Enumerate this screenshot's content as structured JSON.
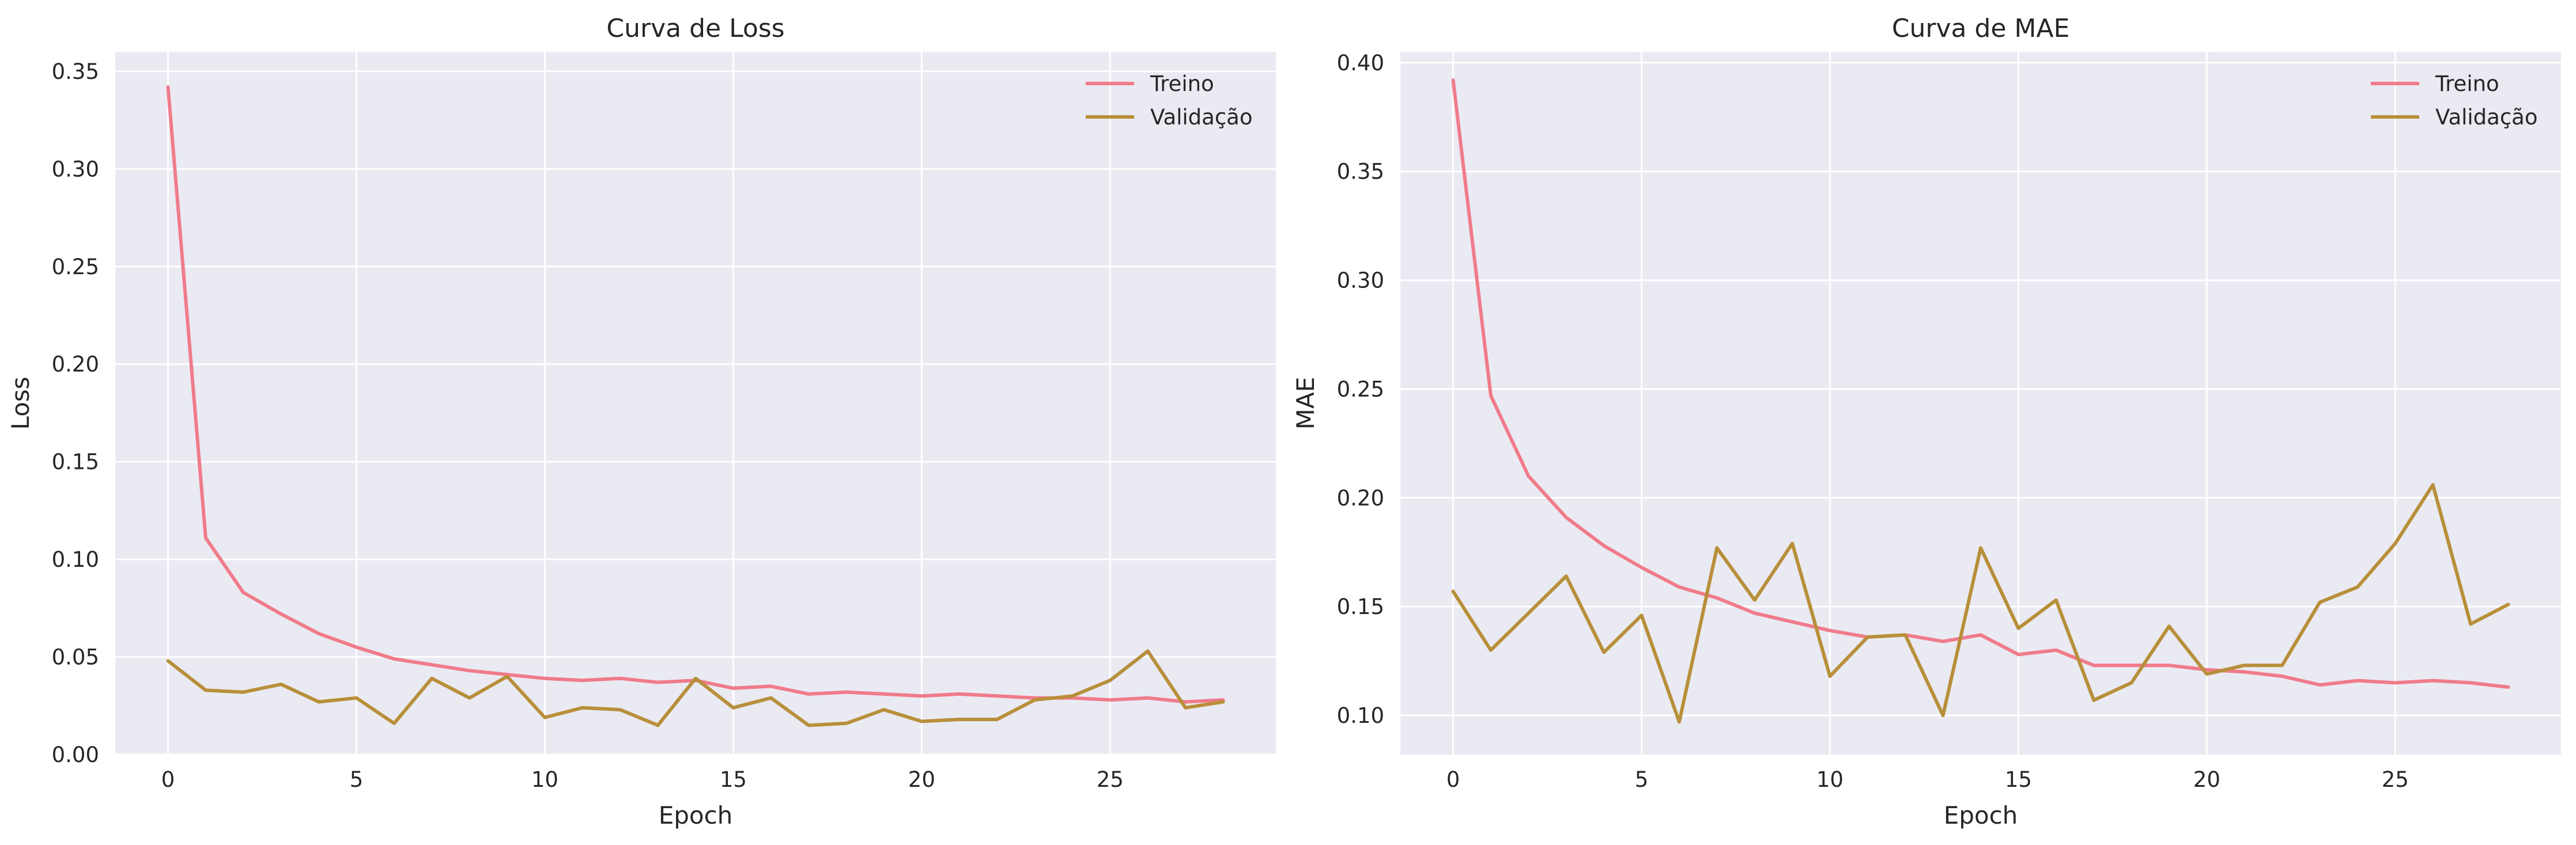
{
  "chart_data": [
    {
      "type": "line",
      "title": "Curva de Loss",
      "xlabel": "Epoch",
      "ylabel": "Loss",
      "xlim": [
        -1.4,
        29.4
      ],
      "ylim": [
        0.0,
        0.36
      ],
      "xticks": [
        0,
        5,
        10,
        15,
        20,
        25
      ],
      "yticks": [
        0.0,
        0.05,
        0.1,
        0.15,
        0.2,
        0.25,
        0.3,
        0.35
      ],
      "ytick_format": 2,
      "grid": true,
      "legend_position": "top-right",
      "x": [
        0,
        1,
        2,
        3,
        4,
        5,
        6,
        7,
        8,
        9,
        10,
        11,
        12,
        13,
        14,
        15,
        16,
        17,
        18,
        19,
        20,
        21,
        22,
        23,
        24,
        25,
        26,
        27,
        28
      ],
      "series": [
        {
          "name": "Treino",
          "color": "#f07b8a",
          "values": [
            0.342,
            0.111,
            0.083,
            0.072,
            0.062,
            0.055,
            0.049,
            0.046,
            0.043,
            0.041,
            0.039,
            0.038,
            0.039,
            0.037,
            0.038,
            0.034,
            0.035,
            0.031,
            0.032,
            0.031,
            0.03,
            0.031,
            0.03,
            0.029,
            0.029,
            0.028,
            0.029,
            0.027,
            0.028
          ]
        },
        {
          "name": "Validação",
          "color": "#b88f3a",
          "values": [
            0.048,
            0.033,
            0.032,
            0.036,
            0.027,
            0.029,
            0.016,
            0.039,
            0.029,
            0.04,
            0.019,
            0.024,
            0.023,
            0.015,
            0.039,
            0.024,
            0.029,
            0.015,
            0.016,
            0.023,
            0.017,
            0.018,
            0.018,
            0.028,
            0.03,
            0.038,
            0.053,
            0.024,
            0.027
          ]
        }
      ]
    },
    {
      "type": "line",
      "title": "Curva de MAE",
      "xlabel": "Epoch",
      "ylabel": "MAE",
      "xlim": [
        -1.4,
        29.4
      ],
      "ylim": [
        0.082,
        0.405
      ],
      "xticks": [
        0,
        5,
        10,
        15,
        20,
        25
      ],
      "yticks": [
        0.1,
        0.15,
        0.2,
        0.25,
        0.3,
        0.35,
        0.4
      ],
      "ytick_format": 2,
      "grid": true,
      "legend_position": "top-right",
      "x": [
        0,
        1,
        2,
        3,
        4,
        5,
        6,
        7,
        8,
        9,
        10,
        11,
        12,
        13,
        14,
        15,
        16,
        17,
        18,
        19,
        20,
        21,
        22,
        23,
        24,
        25,
        26,
        27,
        28
      ],
      "series": [
        {
          "name": "Treino",
          "color": "#f07b8a",
          "values": [
            0.392,
            0.247,
            0.21,
            0.191,
            0.178,
            0.168,
            0.159,
            0.154,
            0.147,
            0.143,
            0.139,
            0.136,
            0.137,
            0.134,
            0.137,
            0.128,
            0.13,
            0.123,
            0.123,
            0.123,
            0.121,
            0.12,
            0.118,
            0.114,
            0.116,
            0.115,
            0.116,
            0.115,
            0.113
          ]
        },
        {
          "name": "Validação",
          "color": "#b88f3a",
          "values": [
            0.157,
            0.13,
            0.147,
            0.164,
            0.129,
            0.146,
            0.097,
            0.177,
            0.153,
            0.179,
            0.118,
            0.136,
            0.137,
            0.1,
            0.177,
            0.14,
            0.153,
            0.107,
            0.115,
            0.141,
            0.119,
            0.123,
            0.123,
            0.152,
            0.159,
            0.179,
            0.206,
            0.142,
            0.151
          ]
        }
      ]
    }
  ]
}
